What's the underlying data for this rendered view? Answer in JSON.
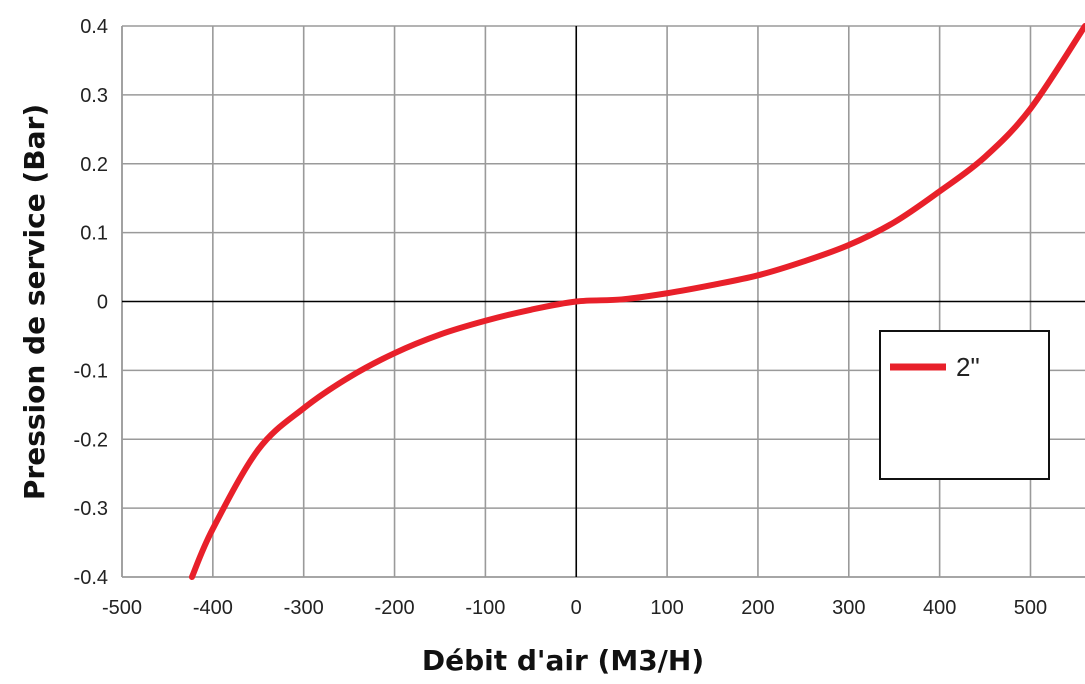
{
  "chart_data": {
    "type": "line",
    "xlabel": "Débit d'air (M3/H)",
    "ylabel": "Pression de service (Bar)",
    "xlim": [
      -500,
      560
    ],
    "ylim": [
      -0.4,
      0.4
    ],
    "x_ticks": [
      -500,
      -400,
      -300,
      -200,
      -100,
      0,
      100,
      200,
      300,
      400,
      500
    ],
    "x_tick_labels": [
      "-500",
      "-400",
      "-300",
      "-200",
      "-100",
      "0",
      "100",
      "200",
      "300",
      "400",
      "500"
    ],
    "y_ticks": [
      0.4,
      0.3,
      0.2,
      0.1,
      0,
      -0.1,
      -0.2,
      -0.3,
      -0.4
    ],
    "y_tick_labels": [
      "0.4",
      "0.3",
      "0.2",
      "0.1",
      "0",
      "-0.1",
      "-0.2",
      "-0.3",
      "-0.4"
    ],
    "grid": true,
    "legend": {
      "position": "right",
      "entries": [
        "2\""
      ]
    },
    "series": [
      {
        "name": "2\"",
        "color": "#e8202a",
        "x": [
          -423,
          -400,
          -350,
          -300,
          -250,
          -200,
          -150,
          -100,
          -50,
          0,
          50,
          100,
          150,
          200,
          250,
          300,
          350,
          400,
          450,
          500,
          560
        ],
        "y": [
          -0.4,
          -0.33,
          -0.215,
          -0.155,
          -0.11,
          -0.075,
          -0.048,
          -0.028,
          -0.012,
          0,
          0.003,
          0.012,
          0.024,
          0.038,
          0.058,
          0.082,
          0.115,
          0.16,
          0.21,
          0.28,
          0.4
        ]
      }
    ]
  }
}
